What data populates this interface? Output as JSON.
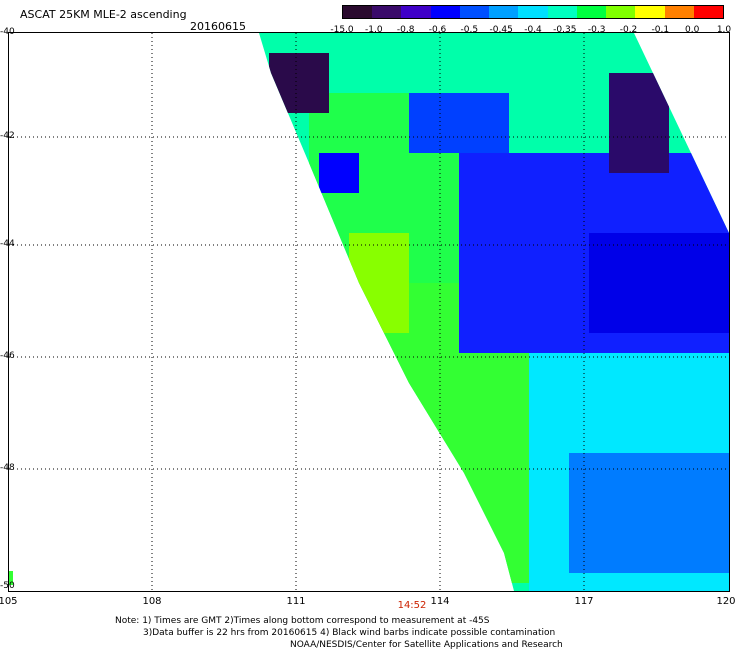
{
  "header": {
    "title": "ASCAT 25KM MLE-2 ascending",
    "date": "20160615"
  },
  "colorbar": {
    "labels": [
      "-15.0",
      "-1.0",
      "-0.8",
      "-0.6",
      "-0.5",
      "-0.45",
      "-0.4",
      "-0.35",
      "-0.3",
      "-0.2",
      "-0.1",
      "0.0",
      "1.0"
    ],
    "colors": [
      "#2a0a2e",
      "#3a0a6a",
      "#3f00c8",
      "#0000ff",
      "#0050ff",
      "#00a0ff",
      "#00e0ff",
      "#00ffc0",
      "#00ff40",
      "#80ff00",
      "#ffff00",
      "#ff8000",
      "#ff0000"
    ]
  },
  "map": {
    "x_ticks": [
      "105",
      "108",
      "111",
      "114",
      "117",
      "120"
    ],
    "y_ticks": [
      "-40",
      "-42",
      "-44",
      "-46",
      "-48",
      "-50"
    ],
    "overpass_time": "14:52"
  },
  "notes": {
    "line1": "Note: 1) Times are GMT 2)Times along bottom correspond to measurement at -45S",
    "line2": "3)Data buffer is 22 hrs from 20160615 4) Black wind barbs indicate possible contamination",
    "line3": "NOAA/NESDIS/Center for Satellite Applications and Research"
  }
}
